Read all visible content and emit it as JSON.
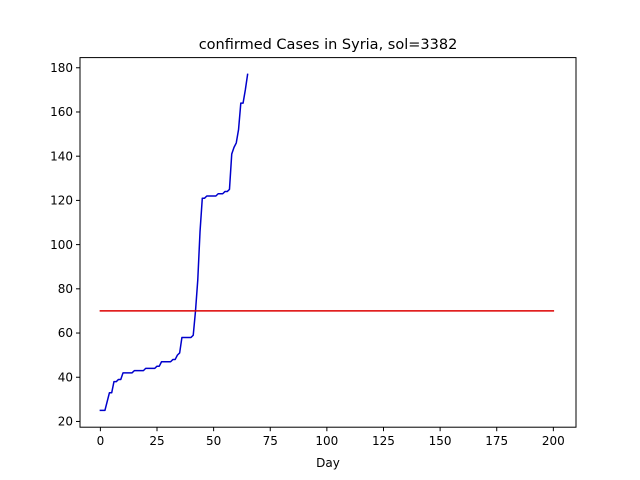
{
  "chart_data": {
    "type": "line",
    "title": "confirmed Cases in Syria, sol=3382",
    "xlabel": "Day",
    "ylabel": "",
    "xlim": [
      -9.0,
      210.0
    ],
    "ylim": [
      17.4,
      184.6
    ],
    "xticks": [
      0,
      25,
      50,
      75,
      100,
      125,
      150,
      175,
      200
    ],
    "yticks": [
      20,
      40,
      60,
      80,
      100,
      120,
      140,
      160,
      180
    ],
    "grid": false,
    "series": [
      {
        "color": "#0000cc",
        "x": [
          0,
          1,
          2,
          3,
          4,
          5,
          6,
          7,
          8,
          9,
          10,
          11,
          12,
          13,
          14,
          15,
          16,
          17,
          18,
          19,
          20,
          21,
          22,
          23,
          24,
          25,
          26,
          27,
          28,
          29,
          30,
          31,
          32,
          33,
          34,
          35,
          36,
          37,
          38,
          39,
          40,
          41,
          42,
          43,
          44,
          45,
          46,
          47,
          48,
          49,
          50,
          51,
          52,
          53,
          54,
          55,
          56,
          57,
          58,
          59,
          60,
          61,
          62,
          63,
          64,
          65
        ],
        "y": [
          25,
          25,
          25,
          29,
          33,
          33,
          38,
          38,
          39,
          39,
          42,
          42,
          42,
          42,
          42,
          43,
          43,
          43,
          43,
          43,
          44,
          44,
          44,
          44,
          44,
          45,
          45,
          47,
          47,
          47,
          47,
          47,
          48,
          48,
          50,
          51,
          58,
          58,
          58,
          58,
          58,
          59,
          70,
          84,
          106,
          121,
          121,
          122,
          122,
          122,
          122,
          122,
          123,
          123,
          123,
          124,
          124,
          125,
          141,
          144,
          146,
          152,
          164,
          164,
          170,
          177
        ]
      },
      {
        "color": "#dd0000",
        "x": [
          0,
          200
        ],
        "y": [
          70,
          70
        ]
      }
    ]
  }
}
